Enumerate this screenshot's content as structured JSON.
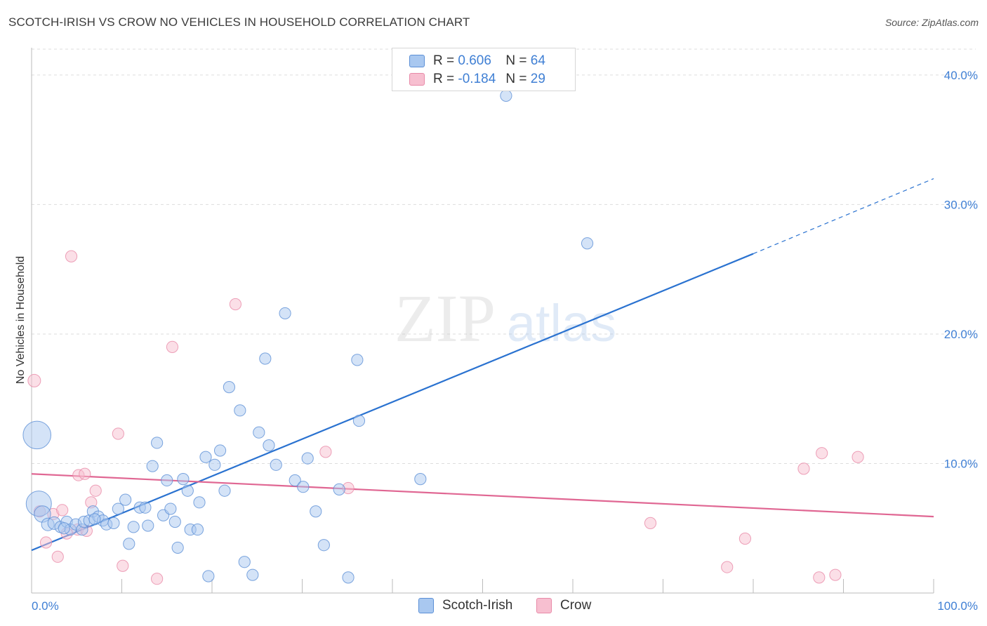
{
  "title": "SCOTCH-IRISH VS CROW NO VEHICLES IN HOUSEHOLD CORRELATION CHART",
  "source": "Source: ZipAtlas.com",
  "watermark": {
    "zip": "ZIP",
    "atlas": "atlas"
  },
  "legend": {
    "rows": [
      {
        "r_label": "R =",
        "r_value": "0.606",
        "n_label": "N =",
        "n_value": "64"
      },
      {
        "r_label": "R =",
        "r_value": "-0.184",
        "n_label": "N =",
        "n_value": "29"
      }
    ]
  },
  "bottom_legend": {
    "series1": "Scotch-Irish",
    "series2": "Crow"
  },
  "colors": {
    "blue_fill": "#a9c8f0",
    "blue_stroke": "#5b8fd6",
    "blue_line": "#2a72d0",
    "pink_fill": "#f7bfd0",
    "pink_stroke": "#e88aa8",
    "pink_line": "#e06793",
    "accent_text": "#3f7fd4",
    "grid": "#dddddd"
  },
  "chart_data": {
    "type": "scatter",
    "title": "SCOTCH-IRISH VS CROW NO VEHICLES IN HOUSEHOLD CORRELATION CHART",
    "xlabel": "",
    "ylabel": "No Vehicles in Household",
    "xlim": [
      0,
      100
    ],
    "ylim": [
      0,
      42
    ],
    "x_tick_labels": [
      "0.0%",
      "100.0%"
    ],
    "y_ticks": [
      10,
      20,
      30,
      40
    ],
    "y_tick_labels": [
      "10.0%",
      "20.0%",
      "30.0%",
      "40.0%"
    ],
    "grid": true,
    "series": [
      {
        "name": "Scotch-Irish",
        "r": 0.606,
        "n": 64,
        "trend": {
          "x0": 0,
          "y0": 3.3,
          "x1": 80,
          "y1": 26.2,
          "dash_to_x": 100,
          "dash_to_y": 32.0
        },
        "points": [
          [
            0.6,
            12.2,
            2.2
          ],
          [
            0.8,
            6.9,
            2.0
          ],
          [
            1.2,
            6.1,
            1.3
          ],
          [
            1.8,
            5.3,
            1.0
          ],
          [
            2.5,
            5.4,
            1.0
          ],
          [
            3.2,
            5.1,
            0.9
          ],
          [
            3.9,
            5.5,
            0.9
          ],
          [
            4.3,
            4.9,
            0.9
          ],
          [
            4.9,
            5.3,
            0.9
          ],
          [
            5.6,
            4.9,
            0.9
          ],
          [
            5.8,
            5.5,
            0.9
          ],
          [
            6.4,
            5.6,
            0.9
          ],
          [
            6.8,
            6.3,
            0.9
          ],
          [
            7.4,
            5.9,
            0.9
          ],
          [
            7.9,
            5.6,
            0.9
          ],
          [
            8.3,
            5.3,
            0.9
          ],
          [
            9.1,
            5.4,
            0.9
          ],
          [
            9.6,
            6.5,
            0.9
          ],
          [
            10.4,
            7.2,
            0.9
          ],
          [
            10.8,
            3.8,
            0.9
          ],
          [
            11.3,
            5.1,
            0.9
          ],
          [
            12.0,
            6.6,
            0.9
          ],
          [
            12.6,
            6.6,
            0.9
          ],
          [
            12.9,
            5.2,
            0.9
          ],
          [
            13.4,
            9.8,
            0.9
          ],
          [
            13.9,
            11.6,
            0.9
          ],
          [
            14.6,
            6.0,
            0.9
          ],
          [
            15.0,
            8.7,
            0.9
          ],
          [
            15.4,
            6.5,
            0.9
          ],
          [
            15.9,
            5.5,
            0.9
          ],
          [
            16.2,
            3.5,
            0.9
          ],
          [
            16.8,
            8.8,
            0.9
          ],
          [
            17.3,
            7.9,
            0.9
          ],
          [
            17.6,
            4.9,
            0.9
          ],
          [
            18.4,
            4.9,
            0.9
          ],
          [
            18.6,
            7.0,
            0.9
          ],
          [
            19.3,
            10.5,
            0.9
          ],
          [
            19.6,
            1.3,
            0.9
          ],
          [
            20.3,
            9.9,
            0.9
          ],
          [
            20.9,
            11.0,
            0.9
          ],
          [
            21.4,
            7.9,
            0.9
          ],
          [
            21.9,
            15.9,
            0.9
          ],
          [
            23.1,
            14.1,
            0.9
          ],
          [
            23.6,
            2.4,
            0.9
          ],
          [
            24.5,
            1.4,
            0.9
          ],
          [
            25.2,
            12.4,
            0.9
          ],
          [
            25.9,
            18.1,
            0.9
          ],
          [
            26.3,
            11.4,
            0.9
          ],
          [
            27.1,
            9.9,
            0.9
          ],
          [
            28.1,
            21.6,
            0.9
          ],
          [
            29.2,
            8.7,
            0.9
          ],
          [
            30.1,
            8.2,
            0.9
          ],
          [
            30.6,
            10.4,
            0.9
          ],
          [
            31.5,
            6.3,
            0.9
          ],
          [
            32.4,
            3.7,
            0.9
          ],
          [
            34.1,
            8.0,
            0.9
          ],
          [
            35.1,
            1.2,
            0.9
          ],
          [
            36.1,
            18.0,
            0.9
          ],
          [
            36.3,
            13.3,
            0.9
          ],
          [
            43.1,
            8.8,
            0.9
          ],
          [
            52.6,
            38.4,
            0.9
          ],
          [
            61.6,
            27.0,
            0.9
          ],
          [
            3.6,
            5.0,
            0.9
          ],
          [
            7.0,
            5.7,
            0.9
          ]
        ]
      },
      {
        "name": "Crow",
        "r": -0.184,
        "n": 29,
        "trend": {
          "x0": 0,
          "y0": 9.2,
          "x1": 100,
          "y1": 5.9
        },
        "points": [
          [
            0.3,
            16.4,
            1.0
          ],
          [
            0.9,
            6.3,
            0.9
          ],
          [
            1.6,
            3.9,
            0.9
          ],
          [
            2.4,
            6.1,
            0.9
          ],
          [
            2.9,
            2.8,
            0.9
          ],
          [
            3.4,
            6.4,
            0.9
          ],
          [
            3.9,
            4.6,
            0.9
          ],
          [
            4.4,
            26.0,
            0.9
          ],
          [
            5.1,
            4.9,
            0.9
          ],
          [
            5.2,
            9.1,
            0.9
          ],
          [
            5.9,
            9.2,
            0.9
          ],
          [
            6.6,
            7.0,
            0.9
          ],
          [
            7.1,
            7.9,
            0.9
          ],
          [
            9.6,
            12.3,
            0.9
          ],
          [
            10.1,
            2.1,
            0.9
          ],
          [
            13.9,
            1.1,
            0.9
          ],
          [
            15.6,
            19.0,
            0.9
          ],
          [
            22.6,
            22.3,
            0.9
          ],
          [
            32.6,
            10.9,
            0.9
          ],
          [
            35.1,
            8.1,
            0.9
          ],
          [
            68.6,
            5.4,
            0.9
          ],
          [
            77.1,
            2.0,
            0.9
          ],
          [
            79.1,
            4.2,
            0.9
          ],
          [
            85.6,
            9.6,
            0.9
          ],
          [
            87.3,
            1.2,
            0.9
          ],
          [
            87.6,
            10.8,
            0.9
          ],
          [
            89.1,
            1.4,
            0.9
          ],
          [
            91.6,
            10.5,
            0.9
          ],
          [
            6.1,
            4.8,
            0.9
          ]
        ]
      }
    ]
  }
}
